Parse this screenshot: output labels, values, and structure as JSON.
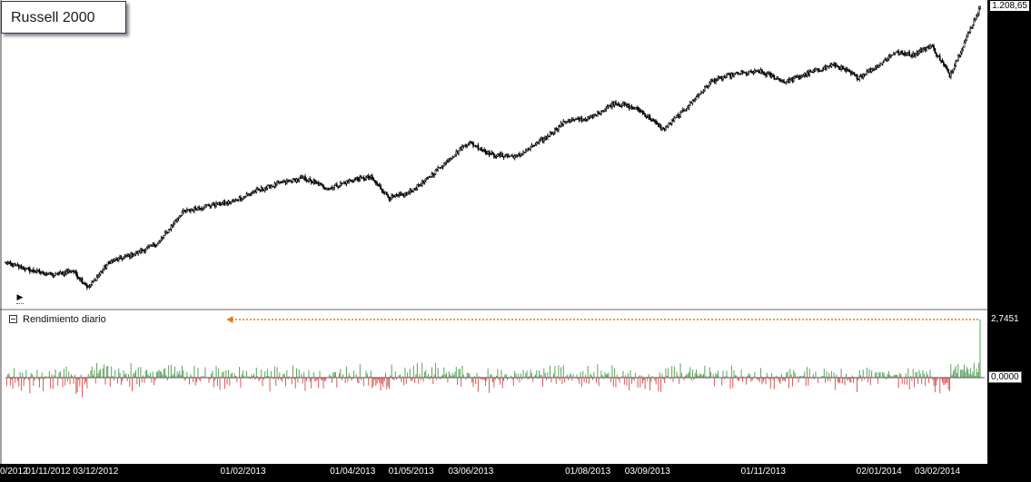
{
  "window": {
    "title": "Russell 2000"
  },
  "price_panel": {
    "last_value_label": "1.208,65",
    "play_icon": "play-icon"
  },
  "returns_panel": {
    "label": "Rendimiento diario",
    "toggle_icon": "collapse-icon",
    "max_label": "2,7451",
    "zero_label": "0,0000"
  },
  "colors": {
    "background": "#ffffff",
    "axis_bar": "#000000",
    "candles": "#000000",
    "positive": "#5aa05a",
    "negative": "#e05555",
    "arrow": "#e07a1a"
  },
  "chart_data": [
    {
      "type": "line",
      "title": "Russell 2000",
      "series": [
        {
          "name": "Russell 2000",
          "x_index": [
            0,
            20,
            40,
            55,
            68,
            85,
            105,
            125,
            145,
            165,
            185,
            205,
            225,
            245,
            265,
            285,
            300,
            315,
            330,
            345,
            360,
            380,
            400,
            420,
            440,
            460,
            480,
            500,
            520,
            540,
            560,
            580,
            600,
            620,
            640,
            660,
            680,
            700,
            715,
            730,
            745,
            760,
            775,
            790,
            800
          ],
          "values": [
            819,
            808,
            800,
            808,
            781,
            820,
            832,
            848,
            896,
            906,
            911,
            928,
            940,
            948,
            932,
            946,
            949,
            918,
            924,
            945,
            970,
            1003,
            983,
            981,
            1005,
            1035,
            1039,
            1063,
            1052,
            1022,
            1057,
            1096,
            1107,
            1110,
            1094,
            1108,
            1121,
            1101,
            1118,
            1140,
            1136,
            1150,
            1105,
            1166,
            1208.65
          ]
        }
      ],
      "ylim": [
        770,
        1215
      ]
    },
    {
      "type": "bar",
      "title": "Rendimiento diario",
      "ylim": [
        -3.15,
        2.7451
      ],
      "max_value": 2.7451,
      "zero_value": 0.0
    }
  ],
  "x_axis": {
    "ticks": [
      {
        "label": "0/2012",
        "index": 0
      },
      {
        "label": "01/11/2012",
        "index": 35
      },
      {
        "label": "03/12/2012",
        "index": 74
      },
      {
        "label": "01/02/2013",
        "index": 195
      },
      {
        "label": "01/04/2013",
        "index": 285
      },
      {
        "label": "01/05/2013",
        "index": 333
      },
      {
        "label": "03/06/2013",
        "index": 382
      },
      {
        "label": "01/08/2013",
        "index": 478
      },
      {
        "label": "03/09/2013",
        "index": 527
      },
      {
        "label": "01/11/2013",
        "index": 622
      },
      {
        "label": "02/01/2014",
        "index": 717
      },
      {
        "label": "03/02/2014",
        "index": 765
      }
    ]
  }
}
